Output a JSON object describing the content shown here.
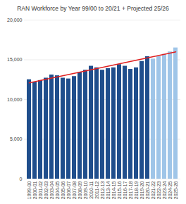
{
  "chart_data": {
    "type": "bar",
    "title": "RAN Workforce by Year 99/00 to 20/21 + Projected 25/26",
    "categories": [
      "1999-00",
      "2000-01",
      "2001-02",
      "2002-03",
      "2003-04",
      "2004-05",
      "2005-06",
      "2006-07",
      "2007-08",
      "2008-09",
      "2009-10",
      "2010-11",
      "2011-12",
      "2012-13",
      "2013-14",
      "2014-15",
      "2015-16",
      "2016-17",
      "2017-18",
      "2018-19",
      "2019-20",
      "2020-21",
      "2021-22",
      "2022-23",
      "2023-24",
      "2024-25",
      "2025-26"
    ],
    "values": [
      12500,
      12200,
      12400,
      12700,
      13100,
      13000,
      12700,
      12600,
      12900,
      13400,
      13700,
      14200,
      14000,
      13700,
      13900,
      14000,
      14400,
      14200,
      13800,
      14000,
      14800,
      15400,
      15100,
      15400,
      15700,
      16000,
      16500
    ],
    "colors": [
      "#1f4e8c",
      "#1f4e8c",
      "#1f4e8c",
      "#1f4e8c",
      "#1f4e8c",
      "#1f4e8c",
      "#1f4e8c",
      "#1f4e8c",
      "#1f4e8c",
      "#1f4e8c",
      "#1f4e8c",
      "#1f4e8c",
      "#1f4e8c",
      "#1f4e8c",
      "#1f4e8c",
      "#1f4e8c",
      "#1f4e8c",
      "#1f4e8c",
      "#1f4e8c",
      "#1f4e8c",
      "#1f4e8c",
      "#1f4e8c",
      "#9fc5e8",
      "#9fc5e8",
      "#9fc5e8",
      "#9fc5e8",
      "#9fc5e8"
    ],
    "trend_line": {
      "categories": [
        "1999-00",
        "2025-26"
      ],
      "values": [
        12100,
        16000
      ],
      "color": "#e02020"
    },
    "ylim": [
      0,
      20000
    ],
    "yticks": [
      0,
      {
        "value": 5000,
        "label": "5,000"
      },
      {
        "value": 10000,
        "label": "10,000"
      },
      {
        "value": 15000,
        "label": "15,000"
      },
      {
        "value": 20000,
        "label": "20,000"
      }
    ],
    "grid": true
  }
}
